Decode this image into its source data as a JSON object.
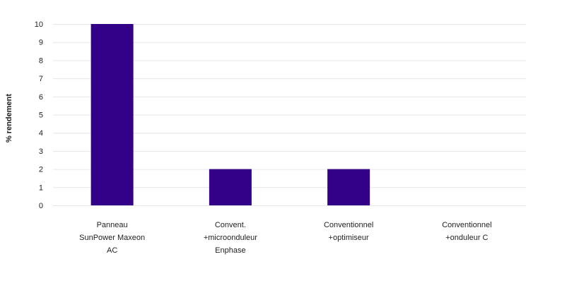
{
  "chart_data": {
    "type": "bar",
    "categories": [
      [
        "Panneau",
        "SunPower Maxeon",
        "AC"
      ],
      [
        "Convent.",
        "+microonduleur",
        "Enphase"
      ],
      [
        "Conventionnel",
        "+optimiseur"
      ],
      [
        "Conventionnel",
        "+onduleur C"
      ]
    ],
    "values": [
      10,
      2,
      2,
      0
    ],
    "xlabel": "",
    "ylabel": "% rendement",
    "ylim": [
      0,
      10
    ],
    "yticks": [
      0,
      1,
      2,
      3,
      4,
      5,
      6,
      7,
      8,
      9,
      10
    ],
    "grid": true,
    "legend": "none",
    "colors": {
      "bar": "#330088",
      "grid": "#e6e6e6",
      "text": "#222222"
    }
  }
}
